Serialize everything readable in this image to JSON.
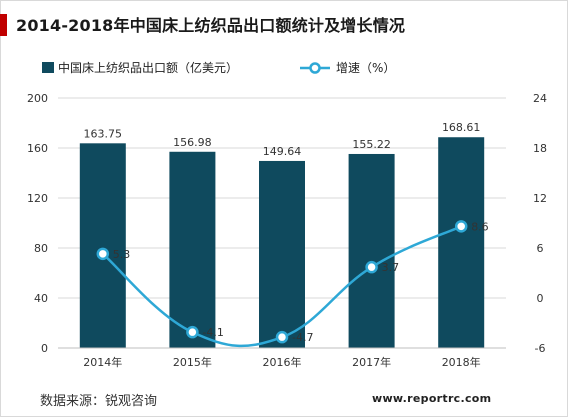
{
  "title": "2014-2018年中国床上纺织品出口额统计及增长情况",
  "source": "数据来源：锐观咨询",
  "website": "www.reportrc.com",
  "colors": {
    "bar": "#0f4a5e",
    "line": "#2ea8d6",
    "title_accent": "#c00000"
  },
  "chart_data": {
    "type": "bar",
    "categories": [
      "2014年",
      "2015年",
      "2016年",
      "2017年",
      "2018年"
    ],
    "series": [
      {
        "name": "中国床上纺织品出口额（亿美元）",
        "type": "bar",
        "axis": "left",
        "values": [
          163.75,
          156.98,
          149.64,
          155.22,
          168.61
        ]
      },
      {
        "name": "增速（%）",
        "type": "line",
        "axis": "right",
        "values": [
          5.3,
          -4.1,
          -4.7,
          3.7,
          8.6
        ]
      }
    ],
    "bar_labels": [
      "163.75",
      "156.98",
      "149.64",
      "155.22",
      "168.61"
    ],
    "line_labels": [
      "5.3",
      "-4.1",
      "-4.7",
      "3.7",
      "8.6"
    ],
    "y_left": {
      "min": 0,
      "max": 200,
      "ticks": [
        0,
        40,
        80,
        120,
        160,
        200
      ]
    },
    "y_right": {
      "min": -6,
      "max": 24,
      "ticks": [
        -6,
        0,
        6,
        12,
        18,
        24
      ]
    },
    "grid": true,
    "legend_position": "top"
  }
}
